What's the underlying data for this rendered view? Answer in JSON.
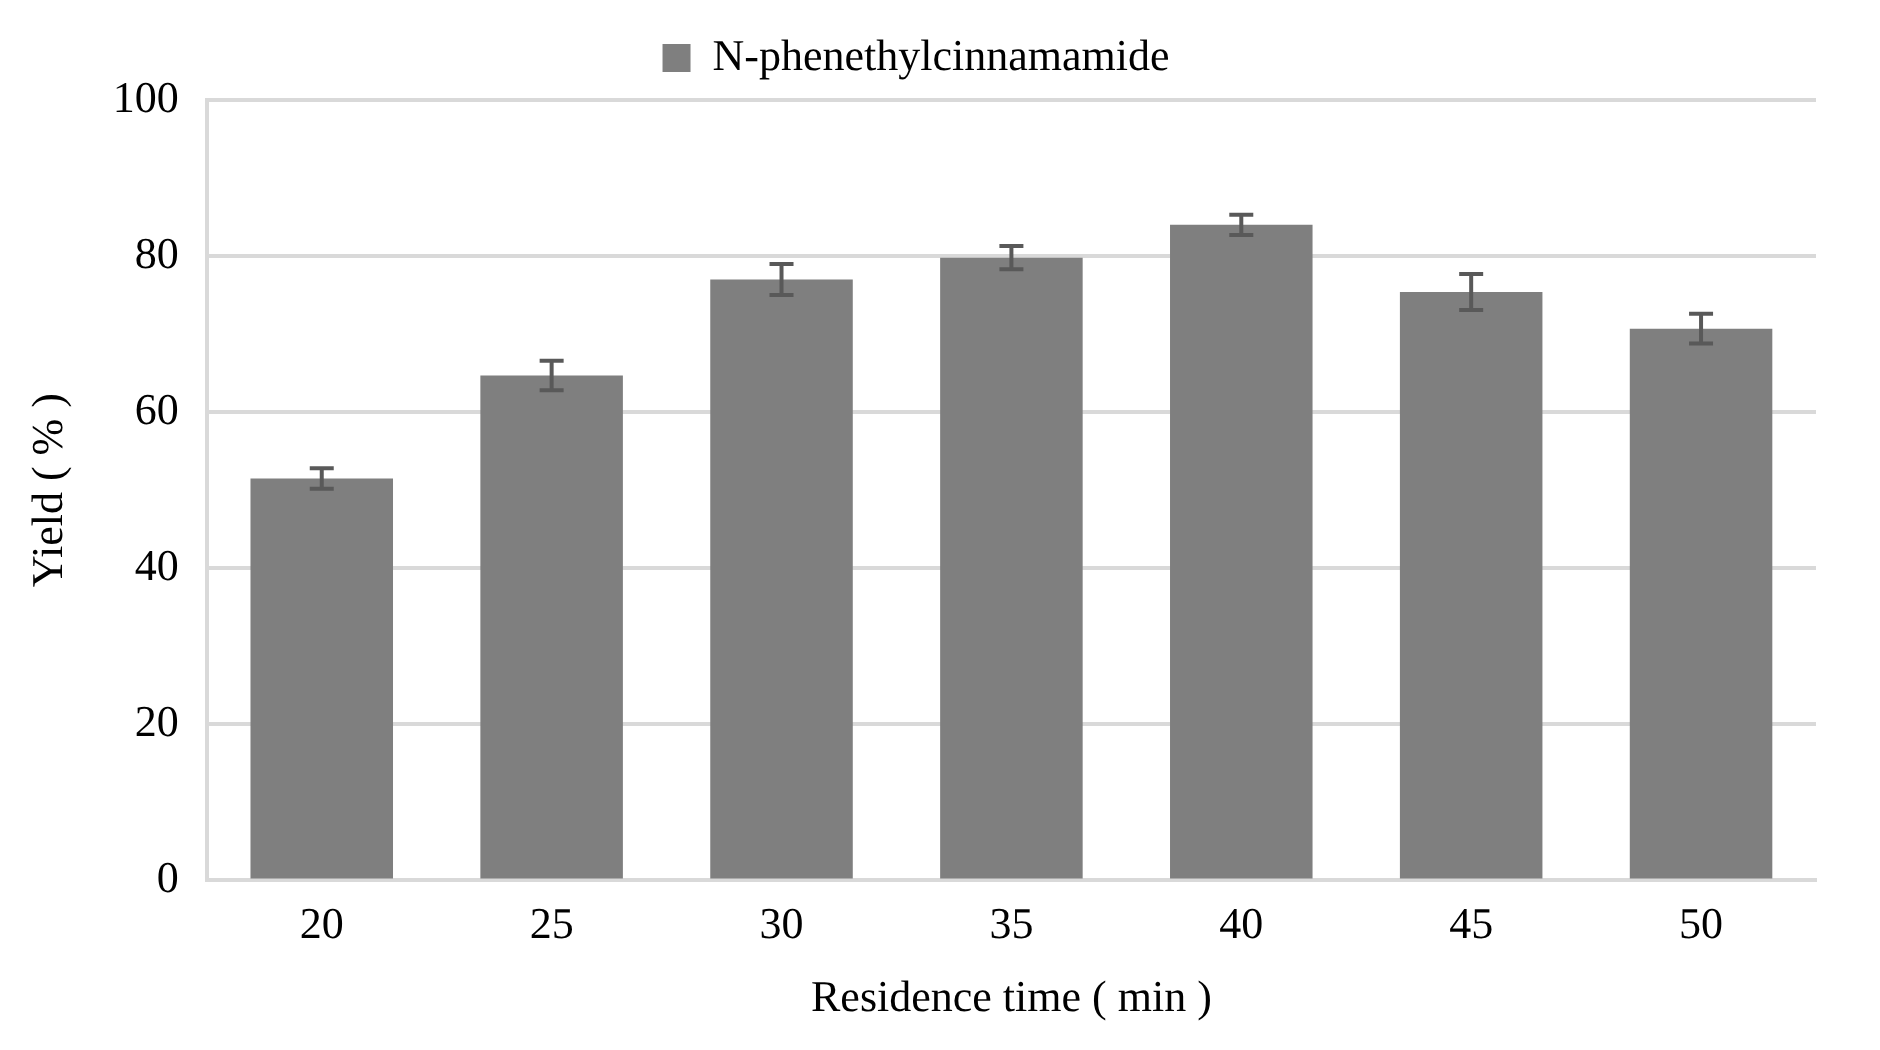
{
  "chart_data": {
    "type": "bar",
    "xlabel": "Residence time ( min )",
    "ylabel": "Yield ( % )",
    "categories": [
      "20",
      "25",
      "30",
      "35",
      "40",
      "45",
      "50"
    ],
    "series": [
      {
        "name": "N-phenethylcinnamamide",
        "color": "#7f7f7f",
        "values": [
          51.5,
          64.7,
          77.0,
          79.8,
          84.0,
          75.4,
          70.7
        ],
        "errors": [
          1.3,
          1.9,
          2.0,
          1.5,
          1.3,
          2.3,
          1.9
        ]
      }
    ],
    "ylim": [
      0,
      100
    ],
    "yticks": [
      0,
      20,
      40,
      60,
      80,
      100
    ],
    "grid": "y",
    "legend": "top"
  }
}
